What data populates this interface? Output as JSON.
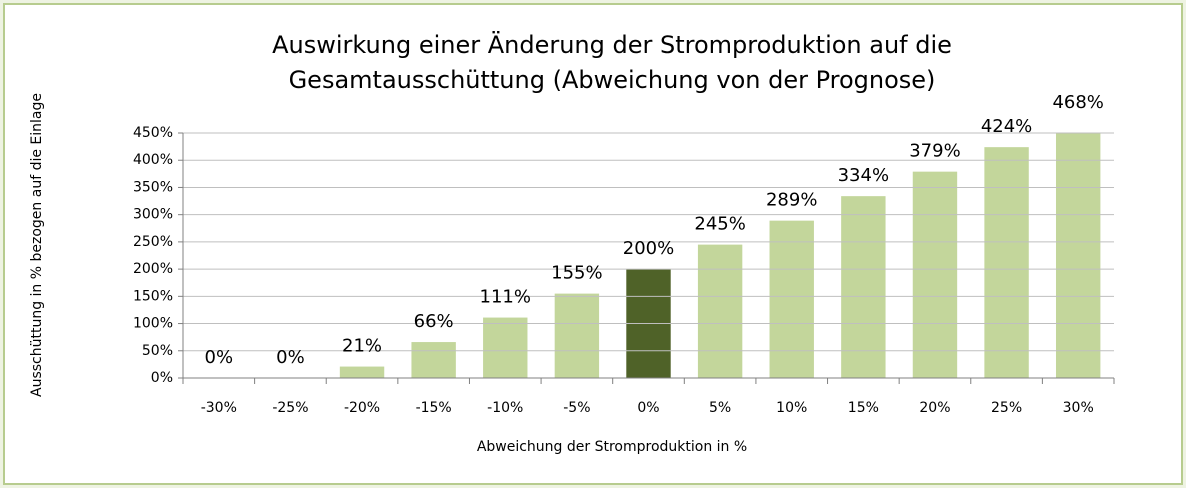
{
  "chart_data": {
    "type": "bar",
    "title": [
      "Auswirkung einer Änderung der Stromproduktion  auf die",
      "Gesamtausschüttung (Abweichung von der Prognose)"
    ],
    "x_label": "Abweichung der Stromproduktion in %",
    "y_label": "Ausschüttung in  % bezogen auf die Einlage",
    "categories": [
      "-30%",
      "-25%",
      "-20%",
      "-15%",
      "-10%",
      "-5%",
      "0%",
      "5%",
      "10%",
      "15%",
      "20%",
      "25%",
      "30%"
    ],
    "values": [
      0,
      0,
      21,
      66,
      111,
      155,
      200,
      245,
      289,
      334,
      379,
      424,
      468
    ],
    "value_labels": [
      "0%",
      "0%",
      "21%",
      "66%",
      "111%",
      "155%",
      "200%",
      "245%",
      "289%",
      "334%",
      "379%",
      "424%",
      "468%"
    ],
    "colors": [
      "#c3d69b",
      "#c3d69b",
      "#c3d69b",
      "#c3d69b",
      "#c3d69b",
      "#c3d69b",
      "#4f6228",
      "#c3d69b",
      "#c3d69b",
      "#c3d69b",
      "#c3d69b",
      "#c3d69b",
      "#c3d69b"
    ],
    "ylim": [
      0,
      450
    ],
    "yticks": [
      {
        "value": 0,
        "label": "0%"
      },
      {
        "value": 50,
        "label": "50%"
      },
      {
        "value": 100,
        "label": "100%"
      },
      {
        "value": 150,
        "label": "150%"
      },
      {
        "value": 200,
        "label": "200%"
      },
      {
        "value": 250,
        "label": "250%"
      },
      {
        "value": 300,
        "label": "300%"
      },
      {
        "value": 350,
        "label": "350%"
      },
      {
        "value": 400,
        "label": "400%"
      },
      {
        "value": 450,
        "label": "450%"
      }
    ],
    "grid": true
  }
}
